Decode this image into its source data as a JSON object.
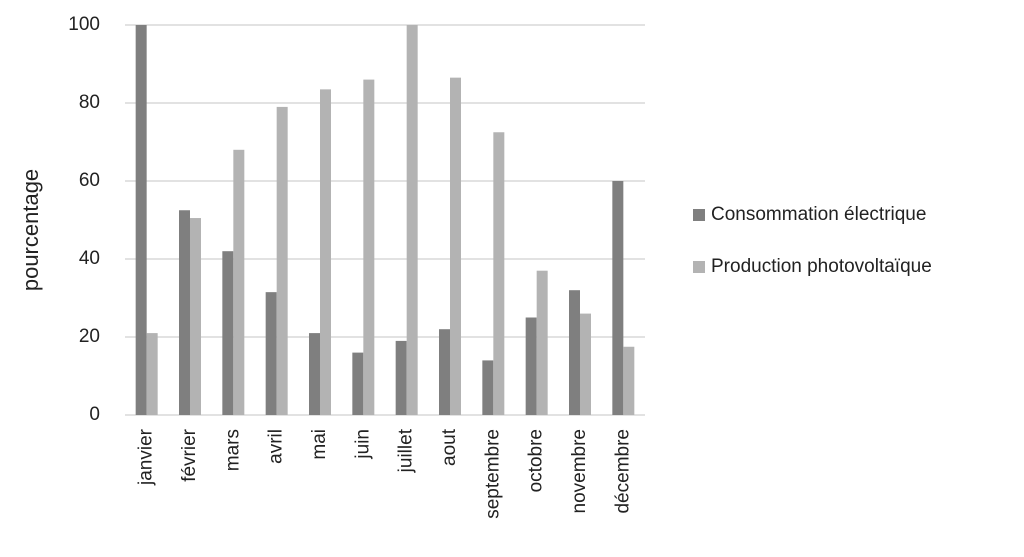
{
  "chart_data": {
    "type": "bar",
    "y_label": "pourcentage",
    "categories": [
      "janvier",
      "février",
      "mars",
      "avril",
      "mai",
      "juin",
      "juillet",
      "aout",
      "septembre",
      "octobre",
      "novembre",
      "décembre"
    ],
    "series": [
      {
        "name": "Consommation électrique",
        "color": "#7f7f7f",
        "values": [
          100,
          52.5,
          42,
          31.5,
          21,
          16,
          19,
          22,
          14,
          25,
          32,
          60
        ]
      },
      {
        "name": "Production photovoltaïque",
        "color": "#b3b3b3",
        "values": [
          21,
          50.5,
          68,
          79,
          83.5,
          86,
          100,
          86.5,
          72.5,
          37,
          26,
          17.5
        ]
      }
    ],
    "ylim": [
      0,
      100
    ],
    "yticks": [
      0,
      20,
      40,
      60,
      80,
      100
    ],
    "grid": true,
    "legend": "right"
  }
}
